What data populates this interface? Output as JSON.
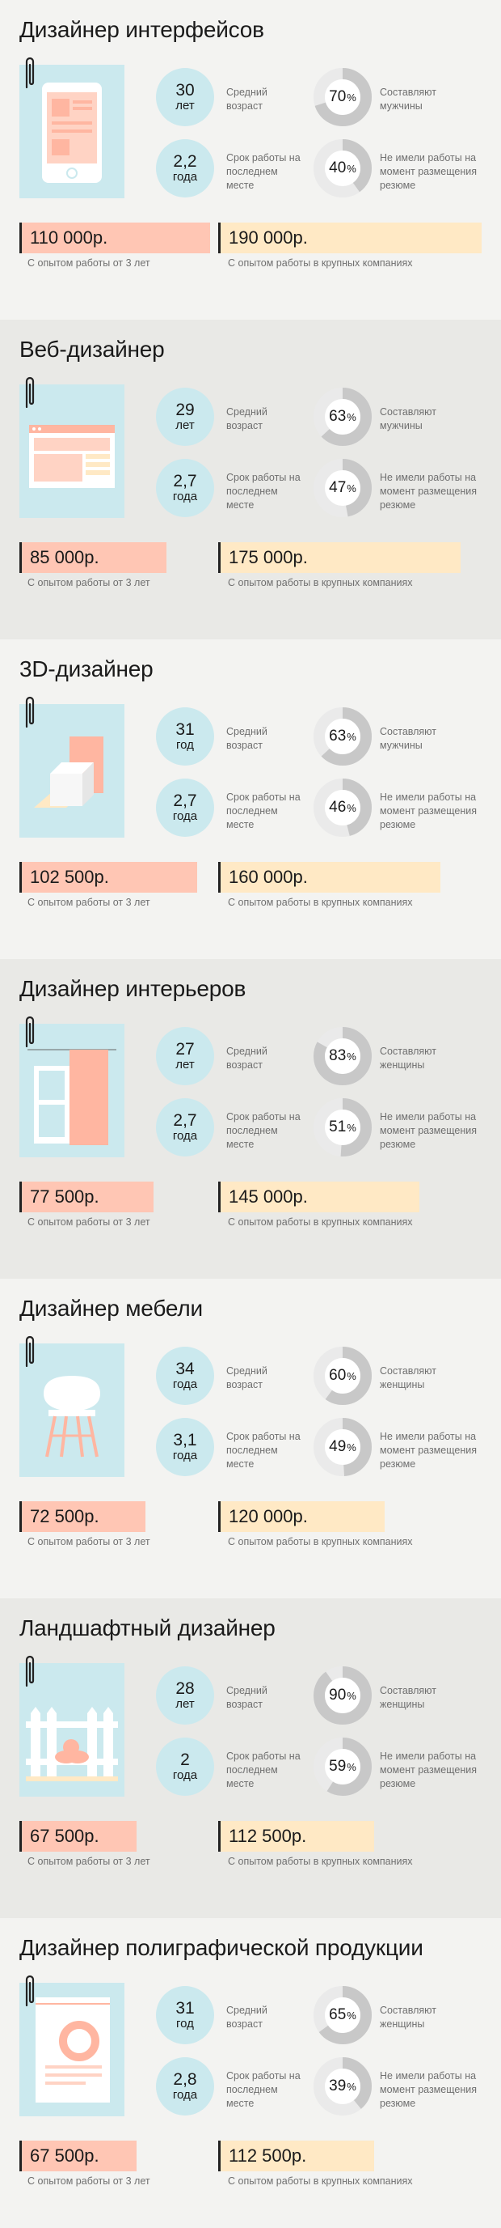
{
  "colors": {
    "salary_exp": "#ffc6b4",
    "salary_big": "#ffe9c5",
    "circle": "#cbe9ee",
    "donut_fill": "#c8c8c8",
    "donut_empty": "#eaeaea"
  },
  "labels": {
    "age": "Средний возраст",
    "tenure": "Срок работы на последнем месте",
    "unemployed": "Не имели работы на момент размещения резюме",
    "exp_caption": "С опытом работы от 3 лет",
    "big_caption": "С опытом работы в крупных компаниях"
  },
  "currency_suffix": " р.",
  "sections": [
    {
      "title": "Дизайнер интерфейсов",
      "icon": "phone-icon",
      "age": "30",
      "age_unit": "лет",
      "tenure": "2,2",
      "tenure_unit": "года",
      "gender_pct": 70,
      "gender_label": "Составляют мужчины",
      "unemployed_pct": 40,
      "salary_exp": "110 000",
      "salary_exp_value": 110000,
      "salary_big": "190 000",
      "salary_big_value": 190000
    },
    {
      "title": "Веб-дизайнер",
      "icon": "browser-window-icon",
      "age": "29",
      "age_unit": "лет",
      "tenure": "2,7",
      "tenure_unit": "года",
      "gender_pct": 63,
      "gender_label": "Составляют мужчины",
      "unemployed_pct": 47,
      "salary_exp": "85 000",
      "salary_exp_value": 85000,
      "salary_big": "175 000",
      "salary_big_value": 175000
    },
    {
      "title": "3D-дизайнер",
      "icon": "cube-icon",
      "age": "31",
      "age_unit": "год",
      "tenure": "2,7",
      "tenure_unit": "года",
      "gender_pct": 63,
      "gender_label": "Составляют мужчины",
      "unemployed_pct": 46,
      "salary_exp": "102 500",
      "salary_exp_value": 102500,
      "salary_big": "160 000",
      "salary_big_value": 160000
    },
    {
      "title": "Дизайнер интерьеров",
      "icon": "interior-icon",
      "age": "27",
      "age_unit": "лет",
      "tenure": "2,7",
      "tenure_unit": "года",
      "gender_pct": 83,
      "gender_label": "Составляют женщины",
      "unemployed_pct": 51,
      "salary_exp": "77 500",
      "salary_exp_value": 77500,
      "salary_big": "145 000",
      "salary_big_value": 145000
    },
    {
      "title": "Дизайнер мебели",
      "icon": "chair-icon",
      "age": "34",
      "age_unit": "года",
      "tenure": "3,1",
      "tenure_unit": "года",
      "gender_pct": 60,
      "gender_label": "Составляют женщины",
      "unemployed_pct": 49,
      "salary_exp": "72 500",
      "salary_exp_value": 72500,
      "salary_big": "120 000",
      "salary_big_value": 120000
    },
    {
      "title": "Ландшафтный дизайнер",
      "icon": "fence-icon",
      "age": "28",
      "age_unit": "лет",
      "tenure": "2",
      "tenure_unit": "года",
      "gender_pct": 90,
      "gender_label": "Составляют женщины",
      "unemployed_pct": 59,
      "salary_exp": "67 500",
      "salary_exp_value": 67500,
      "salary_big": "112 500",
      "salary_big_value": 112500
    },
    {
      "title": "Дизайнер полиграфической продукции",
      "icon": "print-document-icon",
      "age": "31",
      "age_unit": "год",
      "tenure": "2,8",
      "tenure_unit": "года",
      "gender_pct": 65,
      "gender_label": "Составляют женщины",
      "unemployed_pct": 39,
      "salary_exp": "67 500",
      "salary_exp_value": 67500,
      "salary_big": "112 500",
      "salary_big_value": 112500
    }
  ]
}
